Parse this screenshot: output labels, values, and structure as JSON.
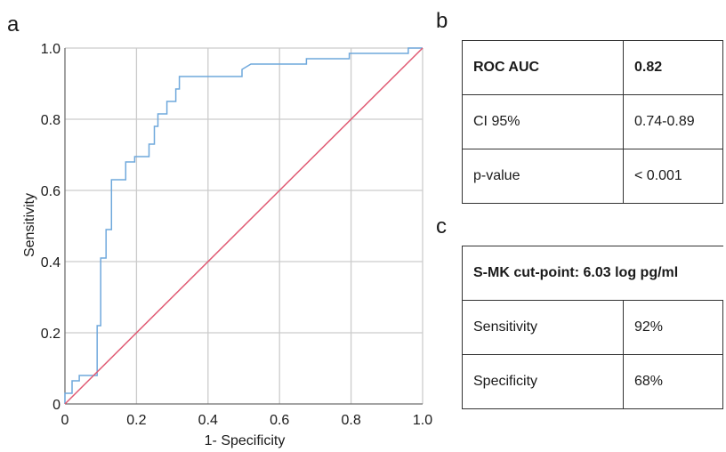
{
  "panels": {
    "a": "a",
    "b": "b",
    "c": "c"
  },
  "chart_data": {
    "type": "line",
    "title": "",
    "xlabel": "1- Specificity",
    "ylabel": "Sensitivity",
    "xlim": [
      0,
      1
    ],
    "ylim": [
      0,
      1
    ],
    "grid": true,
    "x_ticks": [
      "0",
      "0.2",
      "0.4",
      "0.6",
      "0.8",
      "1.0"
    ],
    "y_ticks": [
      "0",
      "0.2",
      "0.4",
      "0.6",
      "0.8",
      "1.0"
    ],
    "series": [
      {
        "color": "#6fa8dc",
        "points": [
          [
            0,
            0
          ],
          [
            0,
            0.03
          ],
          [
            0.02,
            0.03
          ],
          [
            0.02,
            0.065
          ],
          [
            0.04,
            0.065
          ],
          [
            0.04,
            0.08
          ],
          [
            0.09,
            0.08
          ],
          [
            0.09,
            0.22
          ],
          [
            0.1,
            0.22
          ],
          [
            0.1,
            0.41
          ],
          [
            0.115,
            0.41
          ],
          [
            0.115,
            0.49
          ],
          [
            0.13,
            0.49
          ],
          [
            0.13,
            0.63
          ],
          [
            0.17,
            0.63
          ],
          [
            0.17,
            0.68
          ],
          [
            0.195,
            0.68
          ],
          [
            0.195,
            0.695
          ],
          [
            0.235,
            0.695
          ],
          [
            0.235,
            0.73
          ],
          [
            0.25,
            0.73
          ],
          [
            0.25,
            0.78
          ],
          [
            0.26,
            0.78
          ],
          [
            0.26,
            0.815
          ],
          [
            0.285,
            0.815
          ],
          [
            0.285,
            0.85
          ],
          [
            0.31,
            0.85
          ],
          [
            0.31,
            0.885
          ],
          [
            0.32,
            0.885
          ],
          [
            0.32,
            0.92
          ],
          [
            0.495,
            0.92
          ],
          [
            0.495,
            0.94
          ],
          [
            0.52,
            0.955
          ],
          [
            0.675,
            0.955
          ],
          [
            0.675,
            0.97
          ],
          [
            0.795,
            0.97
          ],
          [
            0.795,
            0.985
          ],
          [
            0.96,
            0.985
          ],
          [
            0.96,
            1.0
          ],
          [
            1.0,
            1.0
          ]
        ]
      },
      {
        "color": "#e05a73",
        "points": [
          [
            0,
            0
          ],
          [
            1,
            1
          ]
        ]
      }
    ]
  },
  "table_b": {
    "rows": [
      {
        "label": "ROC  AUC",
        "value": "0.82",
        "bold": true
      },
      {
        "label": "CI 95%",
        "value": "0.74-0.89",
        "bold": false
      },
      {
        "label": "p-value",
        "value": "< 0.001",
        "bold": false
      }
    ]
  },
  "table_c": {
    "header": "S-MK cut-point:  6.03 log pg/ml",
    "rows": [
      {
        "label": "Sensitivity",
        "value": "92%"
      },
      {
        "label": "Specificity",
        "value": "68%"
      }
    ]
  }
}
